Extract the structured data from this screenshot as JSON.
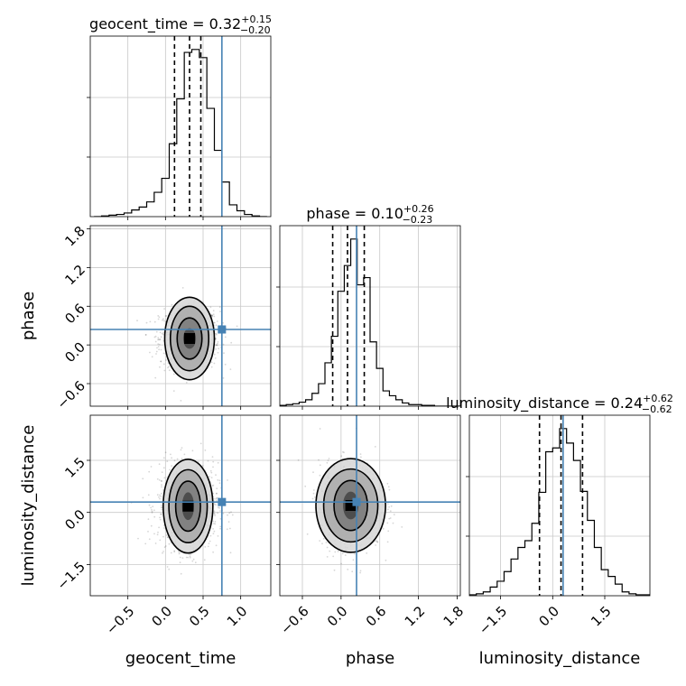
{
  "chart_data": {
    "type": "corner",
    "parameters": [
      "geocent_time",
      "phase",
      "luminosity_distance"
    ],
    "truths": [
      0.75,
      0.24,
      0.3
    ],
    "ranges": [
      [
        -1.0,
        1.4
      ],
      [
        -0.95,
        1.85
      ],
      [
        -2.4,
        2.8
      ]
    ],
    "ticks": [
      [
        -0.5,
        0.0,
        0.5,
        1.0
      ],
      [
        -0.6,
        0.0,
        0.6,
        1.2,
        1.8
      ],
      [
        -1.5,
        0.0,
        1.5
      ]
    ],
    "tick_labels": [
      [
        "−0.5",
        "0.0",
        "0.5",
        "1.0"
      ],
      [
        "−0.6",
        "0.0",
        "0.6",
        "1.2",
        "1.8"
      ],
      [
        "−1.5",
        "0.0",
        "1.5"
      ]
    ],
    "grid": true,
    "colors": {
      "truth": "#4682b4",
      "hist": "#000000",
      "quantile": "#000000",
      "grid": "#c8c8c8"
    },
    "titles": [
      {
        "main": "geocent_time = 0.32",
        "sup": "+0.15",
        "sub": "−0.20"
      },
      {
        "main": "phase = 0.10",
        "sup": "+0.26",
        "sub": "−0.23"
      },
      {
        "main": "luminosity_distance = 0.24",
        "sup": "+0.62",
        "sub": "−0.62"
      }
    ],
    "quantiles": [
      [
        0.12,
        0.32,
        0.47
      ],
      [
        -0.13,
        0.1,
        0.36
      ],
      [
        -0.38,
        0.24,
        0.86
      ]
    ],
    "marginals": [
      {
        "bin_edges": [
          -0.95,
          -0.85,
          -0.75,
          -0.65,
          -0.55,
          -0.45,
          -0.35,
          -0.25,
          -0.15,
          -0.05,
          0.05,
          0.15,
          0.25,
          0.35,
          0.45,
          0.55,
          0.65,
          0.75,
          0.85,
          0.95,
          1.05,
          1.15,
          1.25,
          1.35
        ],
        "counts": [
          0,
          1,
          2,
          3,
          5,
          9,
          13,
          20,
          33,
          52,
          99,
          160,
          223,
          227,
          216,
          147,
          90,
          47,
          16,
          8,
          3,
          1,
          0
        ]
      },
      {
        "bin_edges": [
          -0.95,
          -0.85,
          -0.75,
          -0.65,
          -0.55,
          -0.45,
          -0.35,
          -0.25,
          -0.15,
          -0.05,
          0.05,
          0.15,
          0.25,
          0.35,
          0.45,
          0.55,
          0.65,
          0.75,
          0.85,
          0.95,
          1.05,
          1.15,
          1.25,
          1.35,
          1.45,
          1.55,
          1.65,
          1.75,
          1.85
        ],
        "counts": [
          1,
          2,
          3,
          5,
          8,
          16,
          28,
          54,
          87,
          143,
          175,
          208,
          151,
          160,
          80,
          47,
          19,
          13,
          8,
          4,
          2,
          2,
          1,
          1,
          0,
          0,
          0,
          0
        ]
      },
      {
        "bin_edges": [
          -2.4,
          -2.2,
          -2.0,
          -1.8,
          -1.6,
          -1.4,
          -1.2,
          -1.0,
          -0.8,
          -0.6,
          -0.4,
          -0.2,
          0.0,
          0.2,
          0.4,
          0.6,
          0.8,
          1.0,
          1.2,
          1.4,
          1.6,
          1.8,
          2.0,
          2.2,
          2.4,
          2.6,
          2.8
        ],
        "counts": [
          1,
          2,
          4,
          9,
          15,
          25,
          38,
          50,
          57,
          75,
          107,
          149,
          153,
          173,
          158,
          140,
          108,
          78,
          50,
          27,
          20,
          12,
          4,
          2,
          1,
          1
        ]
      }
    ],
    "pairs": [
      {
        "x": 0,
        "y": 1,
        "center": [
          0.32,
          0.1
        ],
        "contour_radii": [
          [
            0.085,
            0.16
          ],
          [
            0.165,
            0.32
          ],
          [
            0.255,
            0.5
          ],
          [
            0.33,
            0.64
          ]
        ]
      },
      {
        "x": 0,
        "y": 2,
        "center": [
          0.3,
          0.18
        ],
        "contour_radii": [
          [
            0.08,
            0.4
          ],
          [
            0.165,
            0.72
          ],
          [
            0.255,
            1.05
          ],
          [
            0.33,
            1.35
          ]
        ]
      },
      {
        "x": 1,
        "y": 2,
        "center": [
          0.15,
          0.2
        ],
        "contour_radii": [
          [
            0.12,
            0.4
          ],
          [
            0.26,
            0.72
          ],
          [
            0.42,
            1.05
          ],
          [
            0.54,
            1.35
          ]
        ]
      }
    ],
    "scatter_sd": [
      0.2,
      0.24,
      0.62
    ]
  }
}
